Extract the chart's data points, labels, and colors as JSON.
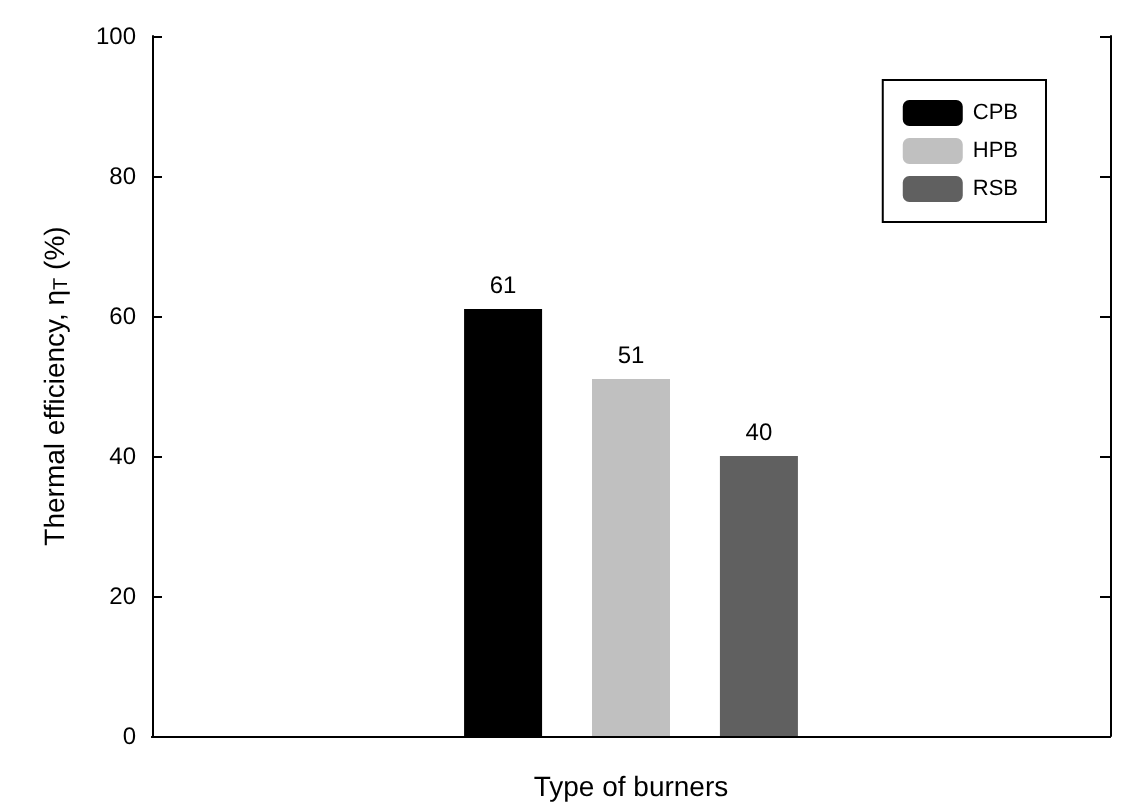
{
  "chart_data": {
    "type": "bar",
    "xlabel": "Type of burners",
    "ylabel": "Thermal efficiency, η$_{T}$ (%)",
    "categories": [
      null
    ],
    "series": [
      {
        "name": "CPB",
        "color": "#000000",
        "values": [
          61
        ]
      },
      {
        "name": "HPB",
        "color": "#c0c0c0",
        "values": [
          51
        ]
      },
      {
        "name": "RSB",
        "color": "#606060",
        "values": [
          40
        ]
      }
    ],
    "ylim": [
      0,
      100
    ],
    "yticks": [
      0,
      20,
      40,
      60,
      80,
      100
    ],
    "grid": false,
    "legend": "top right",
    "data_labels": true
  }
}
